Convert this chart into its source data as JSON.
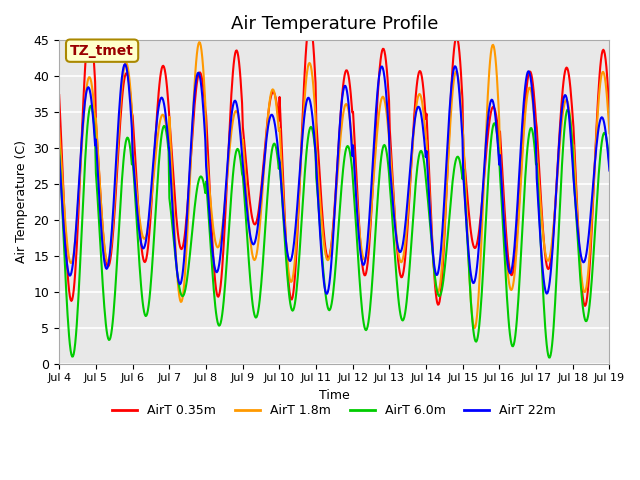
{
  "title": "Air Temperature Profile",
  "xlabel": "Time",
  "ylabel": "Air Temperature (C)",
  "ylim": [
    0,
    45
  ],
  "xtick_labels": [
    "Jul 4",
    "Jul 5",
    "Jul 6",
    "Jul 7",
    "Jul 8",
    "Jul 9",
    "Jul 10",
    "Jul 11",
    "Jul 12",
    "Jul 13",
    "Jul 14",
    "Jul 15",
    "Jul 16",
    "Jul 17",
    "Jul 18",
    "Jul 19"
  ],
  "ytick_values": [
    0,
    5,
    10,
    15,
    20,
    25,
    30,
    35,
    40,
    45
  ],
  "legend_entries": [
    "AirT 0.35m",
    "AirT 1.8m",
    "AirT 6.0m",
    "AirT 22m"
  ],
  "legend_colors": [
    "#ff0000",
    "#ff9900",
    "#00cc00",
    "#0000ff"
  ],
  "annotation_text": "TZ_tmet",
  "annotation_bg": "#ffffcc",
  "annotation_border": "#aa8800",
  "annotation_text_color": "#990000",
  "plot_bg": "#e8e8e8",
  "line_width": 1.5,
  "title_fontsize": 13
}
